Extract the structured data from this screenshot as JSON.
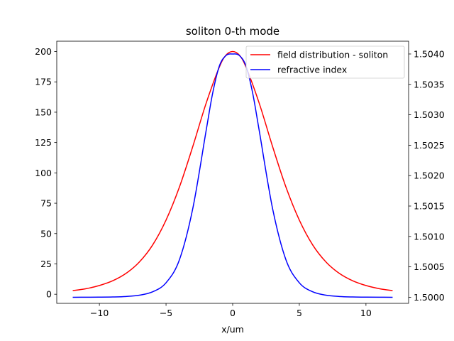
{
  "chart_data": {
    "type": "line",
    "title": "soliton 0-th mode",
    "xlabel": "x/um",
    "ylabel": "",
    "ylabel_right": "",
    "xlim": [
      -13.2,
      13.2
    ],
    "ylim": [
      -7.5,
      208.5
    ],
    "ylim_right": [
      1.4999,
      1.50421
    ],
    "x_ticks": [
      -10,
      -5,
      0,
      5,
      10
    ],
    "x_tick_labels": [
      "−10",
      "−5",
      "0",
      "5",
      "10"
    ],
    "y_ticks": [
      0,
      25,
      50,
      75,
      100,
      125,
      150,
      175,
      200
    ],
    "y_tick_labels": [
      "0",
      "25",
      "50",
      "75",
      "100",
      "125",
      "150",
      "175",
      "200"
    ],
    "y_ticks_right": [
      1.5,
      1.5005,
      1.501,
      1.5015,
      1.502,
      1.5025,
      1.503,
      1.5035,
      1.504
    ],
    "y_tick_labels_right": [
      "1.5000",
      "1.5005",
      "1.5010",
      "1.5015",
      "1.5020",
      "1.5025",
      "1.5030",
      "1.5035",
      "1.5040"
    ],
    "grid": false,
    "legend_position": "upper right",
    "series": [
      {
        "name": "field distribution - soliton",
        "color": "#ff0000",
        "axis": "left",
        "x": [
          -12,
          -11,
          -10,
          -9,
          -8,
          -7,
          -6,
          -5,
          -4,
          -3,
          -2,
          -1,
          -0.5,
          0,
          0.5,
          1,
          2,
          3,
          4,
          5,
          6,
          7,
          8,
          9,
          10,
          11,
          12
        ],
        "y": [
          3,
          4.6,
          7.2,
          11.1,
          17.2,
          26.6,
          40.7,
          61.1,
          88.2,
          121.5,
          157.1,
          187.2,
          197.0,
          200,
          197.0,
          187.2,
          157.1,
          121.5,
          88.2,
          61.1,
          40.7,
          26.6,
          17.2,
          11.1,
          7.2,
          4.6,
          3
        ]
      },
      {
        "name": "refractive index",
        "color": "#0000ff",
        "axis": "right",
        "x": [
          -12,
          -11,
          -10,
          -9,
          -8,
          -7,
          -6,
          -5,
          -4,
          -3,
          -2,
          -1.5,
          -1,
          -0.5,
          0,
          0.5,
          1,
          1.5,
          2,
          3,
          4,
          5,
          6,
          7,
          8,
          9,
          10,
          11,
          12
        ],
        "y": [
          1.5,
          1.500001,
          1.500002,
          1.500005,
          1.500013,
          1.500034,
          1.50009,
          1.500238,
          1.500614,
          1.501452,
          1.502729,
          1.503357,
          1.503801,
          1.503975,
          1.504,
          1.503975,
          1.503801,
          1.503357,
          1.502729,
          1.501452,
          1.500614,
          1.500238,
          1.50009,
          1.500034,
          1.500013,
          1.500005,
          1.500002,
          1.500001,
          1.5
        ]
      }
    ]
  }
}
